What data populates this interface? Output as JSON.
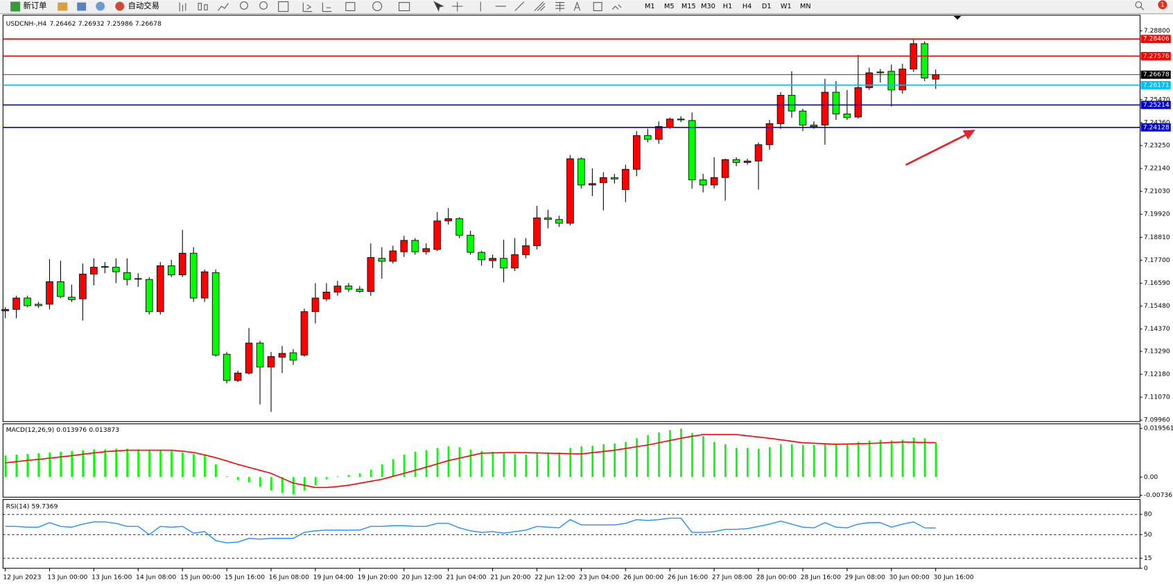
{
  "toolbar": {
    "buttons": [
      "新订单",
      "自动交易"
    ],
    "timeframes": [
      "M1",
      "M5",
      "M15",
      "M30",
      "H1",
      "H4",
      "D1",
      "W1",
      "MN"
    ],
    "alerts": 1
  },
  "chart_data": [
    {
      "type": "candlestick",
      "symbol": "USDCNH-,H4",
      "up_color": "#ff0000",
      "down_color": "#00ff00",
      "bid_color": "#000000",
      "ylim": [
        7.0989,
        7.2952
      ],
      "yticks": [
        {
          "value": 7.288,
          "label": "7.28800"
        },
        {
          "value": 7.2547,
          "label": "7.25470"
        },
        {
          "value": 7.2436,
          "label": "7.24360"
        },
        {
          "value": 7.2325,
          "label": "7.23250"
        },
        {
          "value": 7.2214,
          "label": "7.22140"
        },
        {
          "value": 7.2103,
          "label": "7.21030"
        },
        {
          "value": 7.1992,
          "label": "7.19920"
        },
        {
          "value": 7.1881,
          "label": "7.18810"
        },
        {
          "value": 7.177,
          "label": "7.17700"
        },
        {
          "value": 7.1659,
          "label": "7.16590"
        },
        {
          "value": 7.1548,
          "label": "7.15480"
        },
        {
          "value": 7.1437,
          "label": "7.14370"
        },
        {
          "value": 7.1329,
          "label": "7.13290"
        },
        {
          "value": 7.1218,
          "label": "7.12180"
        },
        {
          "value": 7.1107,
          "label": "7.11070"
        },
        {
          "value": 7.0996,
          "label": "7.09960"
        }
      ],
      "hlines": [
        {
          "value": 7.28406,
          "color": "#ff0000"
        },
        {
          "value": 7.27576,
          "color": "#ff0000"
        },
        {
          "value": 7.26171,
          "color": "#00bfff"
        },
        {
          "value": 7.25214,
          "color": "#0000cd"
        },
        {
          "value": 7.24128,
          "color": "#0000cd"
        }
      ],
      "categories": [
        "12 Jun 2023",
        null,
        null,
        null,
        "13 Jun 00:00",
        null,
        null,
        null,
        "13 Jun 16:00",
        null,
        null,
        null,
        "14 Jun 08:00",
        null,
        null,
        null,
        "15 Jun 00:00",
        null,
        null,
        null,
        "15 Jun 16:00",
        null,
        null,
        null,
        "16 Jun 08:00",
        null,
        null,
        null,
        "19 Jun 04:00",
        null,
        null,
        null,
        "19 Jun 20:00",
        null,
        null,
        null,
        "20 Jun 12:00",
        null,
        null,
        null,
        "21 Jun 04:00",
        null,
        null,
        null,
        "21 Jun 20:00",
        null,
        null,
        null,
        "22 Jun 12:00",
        null,
        null,
        null,
        "23 Jun 04:00",
        null,
        null,
        null,
        "26 Jun 00:00",
        null,
        null,
        null,
        "26 Jun 16:00",
        null,
        null,
        null,
        "27 Jun 08:00",
        null,
        null,
        null,
        "28 Jun 00:00",
        null,
        null,
        null,
        "28 Jun 16:00",
        null,
        null,
        null,
        "29 Jun 08:00",
        null,
        null,
        null,
        "30 Jun 00:00",
        null,
        null,
        null,
        "30 Jun 16:00"
      ],
      "values": [
        [
          7.1525,
          7.1543,
          7.1489,
          7.1532
        ],
        [
          7.1532,
          7.1598,
          7.1489,
          7.1587
        ],
        [
          7.1587,
          7.1598,
          7.1543,
          7.155
        ],
        [
          7.1557,
          7.1568,
          7.1539,
          7.155
        ],
        [
          7.1557,
          7.1775,
          7.1532,
          7.1666
        ],
        [
          7.1666,
          7.1768,
          7.1587,
          7.1594
        ],
        [
          7.1591,
          7.1652,
          7.1568,
          7.1579
        ],
        [
          7.1583,
          7.1754,
          7.1478,
          7.1703
        ],
        [
          7.1703,
          7.1779,
          7.1648,
          7.1736
        ],
        [
          7.1739,
          7.1761,
          7.1707,
          7.1736
        ],
        [
          7.1736,
          7.1779,
          7.1659,
          7.1714
        ],
        [
          7.171,
          7.1779,
          7.1648,
          7.1677
        ],
        [
          7.1681,
          7.1707,
          7.1641,
          7.1681
        ],
        [
          7.1677,
          7.1688,
          7.1507,
          7.1521
        ],
        [
          7.1521,
          7.1761,
          7.1507,
          7.1743
        ],
        [
          7.1743,
          7.1772,
          7.1688,
          7.1699
        ],
        [
          7.1699,
          7.1917,
          7.1688,
          7.1804
        ],
        [
          7.1804,
          7.1833,
          7.1568,
          7.1587
        ],
        [
          7.1587,
          7.1725,
          7.1568,
          7.1714
        ],
        [
          7.171,
          7.1725,
          7.1304,
          7.1311
        ],
        [
          7.1315,
          7.1326,
          7.1174,
          7.1188
        ],
        [
          7.1188,
          7.1235,
          7.1181,
          7.1224
        ],
        [
          7.1224,
          7.1442,
          7.1217,
          7.1369
        ],
        [
          7.1369,
          7.138,
          7.1072,
          7.1253
        ],
        [
          7.1253,
          7.1326,
          7.1036,
          7.1304
        ],
        [
          7.1301,
          7.1355,
          7.1224,
          7.1319
        ],
        [
          7.1322,
          7.134,
          7.1264,
          7.1286
        ],
        [
          7.1311,
          7.1536,
          7.1304,
          7.1521
        ],
        [
          7.1521,
          7.1659,
          7.1464,
          7.1587
        ],
        [
          7.1583,
          7.1659,
          7.1572,
          7.1616
        ],
        [
          7.1616,
          7.167,
          7.1598,
          7.1645
        ],
        [
          7.1645,
          7.1659,
          7.1616,
          7.163
        ],
        [
          7.163,
          7.1645,
          7.1612,
          7.1619
        ],
        [
          7.1619,
          7.1851,
          7.1598,
          7.1783
        ],
        [
          7.1779,
          7.1833,
          7.1681,
          7.1765
        ],
        [
          7.1765,
          7.184,
          7.1754,
          7.1815
        ],
        [
          7.1811,
          7.1888,
          7.1786,
          7.1866
        ],
        [
          7.1866,
          7.1877,
          7.1797,
          7.1811
        ],
        [
          7.1811,
          7.1851,
          7.1797,
          7.1826
        ],
        [
          7.1822,
          7.2003,
          7.1815,
          7.196
        ],
        [
          7.196,
          7.2022,
          7.1942,
          7.1971
        ],
        [
          7.1971,
          7.1978,
          7.1877,
          7.1891
        ],
        [
          7.1891,
          7.1913,
          7.1797,
          7.1808
        ],
        [
          7.1808,
          7.1815,
          7.1743,
          7.1772
        ],
        [
          7.1768,
          7.1797,
          7.1732,
          7.1779
        ],
        [
          7.1779,
          7.1869,
          7.1663,
          7.1732
        ],
        [
          7.1732,
          7.1877,
          7.1718,
          7.1797
        ],
        [
          7.1797,
          7.1877,
          7.1779,
          7.184
        ],
        [
          7.184,
          7.2033,
          7.1822,
          7.1975
        ],
        [
          7.1975,
          7.2014,
          7.1924,
          7.1967
        ],
        [
          7.1967,
          7.1985,
          7.1931,
          7.1949
        ],
        [
          7.1949,
          7.2279,
          7.1938,
          7.2261
        ],
        [
          7.2261,
          7.2268,
          7.2116,
          7.2134
        ],
        [
          7.2134,
          7.2214,
          7.208,
          7.2141
        ],
        [
          7.2145,
          7.2196,
          7.2011,
          7.217
        ],
        [
          7.217,
          7.2188,
          7.2141,
          7.2163
        ],
        [
          7.2112,
          7.2232,
          7.2051,
          7.221
        ],
        [
          7.221,
          7.2395,
          7.2177,
          7.2373
        ],
        [
          7.2373,
          7.2406,
          7.234,
          7.2355
        ],
        [
          7.2355,
          7.2442,
          7.2333,
          7.2417
        ],
        [
          7.2413,
          7.246,
          7.2406,
          7.2453
        ],
        [
          7.2453,
          7.2467,
          7.2438,
          7.2449
        ],
        [
          7.2446,
          7.2485,
          7.2116,
          7.2159
        ],
        [
          7.2159,
          7.2188,
          7.2098,
          7.2134
        ],
        [
          7.2134,
          7.2268,
          7.2116,
          7.217
        ],
        [
          7.217,
          7.2261,
          7.2058,
          7.2257
        ],
        [
          7.2257,
          7.2268,
          7.2225,
          7.2243
        ],
        [
          7.2243,
          7.2261,
          7.2232,
          7.225
        ],
        [
          7.225,
          7.234,
          7.2112,
          7.2329
        ],
        [
          7.2329,
          7.2449,
          7.2304,
          7.2431
        ],
        [
          7.2431,
          7.2583,
          7.2406,
          7.2568
        ],
        [
          7.2568,
          7.2684,
          7.246,
          7.2492
        ],
        [
          7.2492,
          7.2503,
          7.2395,
          7.2424
        ],
        [
          7.2424,
          7.2442,
          7.2406,
          7.2417
        ],
        [
          7.2424,
          7.2648,
          7.2329,
          7.2583
        ],
        [
          7.2583,
          7.2637,
          7.2449,
          7.2478
        ],
        [
          7.2478,
          7.2594,
          7.2449,
          7.246
        ],
        [
          7.2463,
          7.2764,
          7.2456,
          7.2605
        ],
        [
          7.2605,
          7.2702,
          7.2594,
          7.2677
        ],
        [
          7.2681,
          7.2695,
          7.263,
          7.2677
        ],
        [
          7.2684,
          7.2717,
          7.2514,
          7.2594
        ],
        [
          7.2594,
          7.272,
          7.2576,
          7.2695
        ],
        [
          7.2695,
          7.284,
          7.2681,
          7.2818
        ],
        [
          7.2818,
          7.2829,
          7.2637,
          7.2652
        ],
        [
          7.26462,
          7.26932,
          7.25986,
          7.26678
        ]
      ]
    },
    {
      "type": "macd",
      "title": "MACD(12,26,9)",
      "ylim": [
        -0.0078,
        0.0211
      ],
      "yticks": [
        0.019561,
        {
          "value": 0,
          "label": "0.00"
        },
        -0.007367
      ],
      "histogram": {
        "color": "#00ff00",
        "values": [
          0.0087,
          0.009,
          0.0093,
          0.0096,
          0.0099,
          0.0102,
          0.0105,
          0.0108,
          0.0111,
          0.0111,
          0.0114,
          0.0114,
          0.0111,
          0.0108,
          0.0108,
          0.0105,
          0.0099,
          0.0093,
          0.0087,
          0.0051,
          0.0003,
          -0.0012,
          -0.0021,
          -0.0039,
          -0.0054,
          -0.0063,
          -0.0069,
          -0.0054,
          -0.0033,
          -0.0009,
          0.0003,
          0.0009,
          0.0015,
          0.003,
          0.0051,
          0.0072,
          0.009,
          0.0102,
          0.0108,
          0.0117,
          0.0123,
          0.012,
          0.0111,
          0.0105,
          0.0102,
          0.0096,
          0.0093,
          0.009,
          0.0099,
          0.0099,
          0.0099,
          0.0117,
          0.0123,
          0.0126,
          0.0132,
          0.0135,
          0.0141,
          0.0156,
          0.0168,
          0.018,
          0.0189,
          0.0195,
          0.0177,
          0.0165,
          0.0141,
          0.0132,
          0.0117,
          0.0117,
          0.0114,
          0.012,
          0.0132,
          0.0132,
          0.0129,
          0.0129,
          0.0132,
          0.0135,
          0.0135,
          0.0141,
          0.0147,
          0.015,
          0.0147,
          0.015,
          0.0159,
          0.0156,
          0.013976
        ]
      },
      "signal": {
        "color": "#ff0000",
        "values": [
          0.0057,
          0.0062,
          0.0067,
          0.0071,
          0.0076,
          0.0081,
          0.0086,
          0.0092,
          0.0097,
          0.0102,
          0.0105,
          0.0108,
          0.0108,
          0.0108,
          0.0108,
          0.0108,
          0.0104,
          0.0099,
          0.0089,
          0.0078,
          0.0065,
          0.0051,
          0.0039,
          0.0027,
          0.0015,
          -0.0005,
          -0.0024,
          -0.0033,
          -0.0042,
          -0.0042,
          -0.0038,
          -0.0033,
          -0.0025,
          -0.0017,
          -0.0009,
          0.0003,
          0.0015,
          0.0027,
          0.004,
          0.0053,
          0.0066,
          0.0076,
          0.0086,
          0.0096,
          0.0097,
          0.0098,
          0.0099,
          0.0098,
          0.0097,
          0.0096,
          0.0095,
          0.0094,
          0.0093,
          0.0098,
          0.0103,
          0.0108,
          0.0115,
          0.0122,
          0.0129,
          0.0138,
          0.0147,
          0.0156,
          0.0164,
          0.0171,
          0.0171,
          0.0171,
          0.0171,
          0.0166,
          0.0161,
          0.0156,
          0.015,
          0.0144,
          0.0138,
          0.0136,
          0.0134,
          0.0132,
          0.0133,
          0.0134,
          0.0135,
          0.0137,
          0.0139,
          0.0141,
          0.014,
          0.0139,
          0.013873
        ]
      }
    },
    {
      "type": "rsi",
      "title": "RSI(14)",
      "color": "#1e90ff",
      "ylim": [
        0,
        100
      ],
      "yticks": [
        80,
        50,
        15,
        0
      ],
      "levels": [
        80,
        50,
        15
      ],
      "values": [
        62.2,
        62.2,
        61.1,
        61.1,
        67.8,
        62.2,
        61.1,
        65.6,
        68.9,
        68.9,
        66.7,
        62.2,
        62.2,
        50.0,
        62.2,
        61.1,
        62.2,
        52.2,
        54.4,
        41.1,
        37.8,
        38.9,
        44.4,
        43.3,
        44.4,
        44.4,
        44.4,
        53.3,
        55.6,
        56.7,
        56.7,
        56.7,
        56.7,
        62.2,
        62.2,
        63.3,
        63.3,
        62.2,
        62.2,
        66.7,
        66.7,
        60.0,
        55.6,
        53.3,
        54.4,
        52.2,
        54.4,
        56.7,
        62.2,
        61.1,
        60.0,
        72.2,
        64.4,
        64.4,
        64.4,
        64.4,
        66.7,
        72.2,
        71.1,
        72.2,
        74.4,
        74.4,
        53.3,
        53.3,
        54.4,
        57.8,
        57.8,
        58.9,
        62.2,
        65.6,
        70.0,
        65.6,
        61.1,
        60.0,
        67.8,
        61.1,
        60.0,
        65.6,
        67.8,
        67.8,
        61.1,
        65.6,
        68.9,
        60.0,
        59.7369
      ]
    }
  ]
}
